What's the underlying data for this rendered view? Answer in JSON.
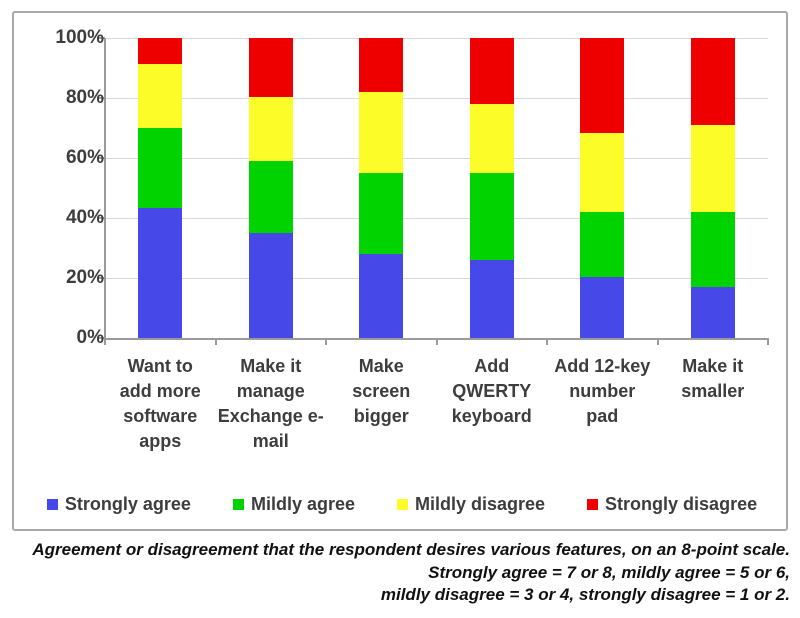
{
  "chart_data": {
    "type": "bar",
    "subtype": "stacked-100-percent",
    "title": "",
    "xlabel": "",
    "ylabel": "",
    "ylim": [
      0,
      100
    ],
    "grid": true,
    "legend_position": "bottom",
    "y_ticks": [
      "0%",
      "20%",
      "40%",
      "60%",
      "80%",
      "100%"
    ],
    "categories": [
      "Want to add more software apps",
      "Make it manage Exchange e-mail",
      "Make screen bigger",
      "Add QWERTY keyboard",
      "Add 12-key number pad",
      "Make it smaller"
    ],
    "category_label_lines": [
      [
        "Want to",
        "add more",
        "software",
        "apps"
      ],
      [
        "Make it",
        "manage",
        "Exchange e-",
        "mail"
      ],
      [
        "Make",
        "screen",
        "bigger"
      ],
      [
        "Add",
        "QWERTY",
        "keyboard"
      ],
      [
        "Add 12-key",
        "number",
        "pad"
      ],
      [
        "Make it",
        "smaller"
      ]
    ],
    "series": [
      {
        "name": "Strongly agree",
        "color": "#4648e8",
        "values": [
          43.5,
          35.0,
          28.0,
          26.0,
          20.5,
          17.0
        ]
      },
      {
        "name": "Mildly agree",
        "color": "#00d300",
        "values": [
          26.5,
          24.0,
          27.0,
          29.0,
          21.5,
          25.0
        ]
      },
      {
        "name": "Mildly disagree",
        "color": "#fcfc28",
        "values": [
          21.5,
          21.5,
          27.0,
          23.0,
          26.5,
          29.0
        ]
      },
      {
        "name": "Strongly disagree",
        "color": "#ef0000",
        "values": [
          8.5,
          19.5,
          18.0,
          22.0,
          31.5,
          29.0
        ]
      }
    ]
  },
  "caption": {
    "line1": "Agreement or disagreement that the respondent desires various features, on an 8-point scale.",
    "line2": "Strongly agree = 7 or 8, mildly agree = 5 or 6,",
    "line3": "mildly disagree = 3 or 4, strongly disagree = 1 or 2."
  },
  "colors": {
    "frame_border": "#a8a8a8",
    "grid": "#d9d9d9",
    "axis": "#9a9a9a",
    "text": "#3d3d3d",
    "caption_text": "#111111"
  }
}
